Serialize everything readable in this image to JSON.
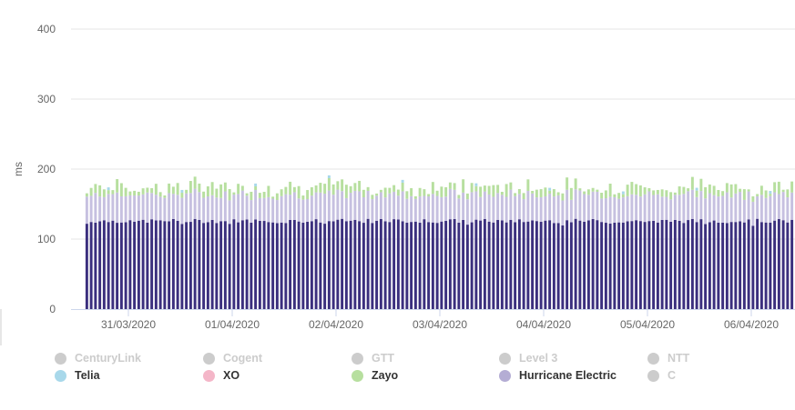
{
  "chart_data": {
    "type": "bar",
    "stacked": true,
    "title": "",
    "xlabel": "",
    "ylabel": "ms",
    "ylim": [
      0,
      400
    ],
    "yticks": [
      0,
      100,
      200,
      300,
      400
    ],
    "grid": true,
    "legend_position": "bottom",
    "x_start": "30/03/2020 12:00",
    "x_tick_labels": [
      "31/03/2020",
      "01/04/2020",
      "02/04/2020",
      "03/04/2020",
      "04/04/2020",
      "05/04/2020",
      "06/04/2020"
    ],
    "bars_per_day": 24,
    "series_order_bottom_to_top": [
      "Hurricane Electric",
      "Telia",
      "Zayo"
    ],
    "base_values": {
      "Hurricane Electric": 126,
      "Telia": 38,
      "Zayo": 14
    },
    "series": [
      {
        "name": "CenturyLink",
        "color": "#cccccc",
        "visible": false
      },
      {
        "name": "Cogent",
        "color": "#cccccc",
        "visible": false
      },
      {
        "name": "GTT",
        "color": "#cccccc",
        "visible": false
      },
      {
        "name": "Level 3",
        "color": "#cccccc",
        "visible": false
      },
      {
        "name": "NTT",
        "color": "#cccccc",
        "visible": false
      },
      {
        "name": "Telia",
        "color": "#a8d8ea",
        "visible": true
      },
      {
        "name": "XO",
        "color": "#f4b6c8",
        "visible": true
      },
      {
        "name": "Zayo",
        "color": "#b7df9f",
        "visible": true
      },
      {
        "name": "Hurricane Electric",
        "color": "#b4add4",
        "visible": true
      },
      {
        "name": "C",
        "color": "#cccccc",
        "visible": false
      }
    ],
    "bar_colors": {
      "Hurricane Electric": "#3b2f7e",
      "Telia": "#c6c0e0",
      "Zayo": "#b7df9f"
    }
  },
  "legend": {
    "items": [
      {
        "label": "CenturyLink",
        "dot_color": "#cccccc",
        "text_color": "#cccccc"
      },
      {
        "label": "Cogent",
        "dot_color": "#cccccc",
        "text_color": "#cccccc"
      },
      {
        "label": "GTT",
        "dot_color": "#cccccc",
        "text_color": "#cccccc"
      },
      {
        "label": "Level 3",
        "dot_color": "#cccccc",
        "text_color": "#cccccc"
      },
      {
        "label": "NTT",
        "dot_color": "#cccccc",
        "text_color": "#cccccc"
      },
      {
        "label": "Telia",
        "dot_color": "#a8d8ea",
        "text_color": "#333333"
      },
      {
        "label": "XO",
        "dot_color": "#f4b6c8",
        "text_color": "#333333"
      },
      {
        "label": "Zayo",
        "dot_color": "#b7df9f",
        "text_color": "#333333"
      },
      {
        "label": "Hurricane Electric",
        "dot_color": "#b4add4",
        "text_color": "#333333"
      },
      {
        "label": "C",
        "dot_color": "#cccccc",
        "text_color": "#cccccc"
      }
    ]
  }
}
